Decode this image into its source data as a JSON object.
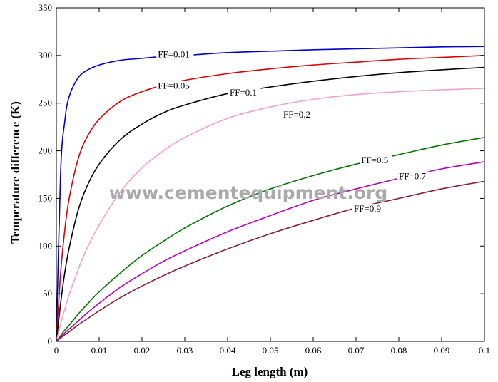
{
  "chart_data": {
    "type": "line",
    "title": "",
    "xlabel": "Leg length (m)",
    "ylabel": "Temperature difference (K)",
    "xlim": [
      0,
      0.1
    ],
    "ylim": [
      0,
      350
    ],
    "xticks": [
      0,
      0.01,
      0.02,
      0.03,
      0.04,
      0.05,
      0.06,
      0.07,
      0.08,
      0.09,
      0.1
    ],
    "yticks": [
      0,
      50,
      100,
      150,
      200,
      250,
      300,
      350
    ],
    "grid": false,
    "legend": "none",
    "x": [
      0,
      0.001,
      0.002,
      0.003,
      0.005,
      0.007,
      0.01,
      0.015,
      0.02,
      0.025,
      0.03,
      0.04,
      0.05,
      0.06,
      0.07,
      0.08,
      0.09,
      0.1
    ],
    "series": [
      {
        "name": "FF=0.01",
        "color": "#0000cc",
        "values": [
          0,
          178,
          232,
          257,
          276,
          284,
          290,
          295,
          297,
          299,
          300,
          303,
          304.5,
          306,
          307,
          308,
          309,
          309.5
        ]
      },
      {
        "name": "FF=0.05",
        "color": "#dd0000",
        "values": [
          0,
          72,
          118,
          150,
          190,
          213,
          233,
          252,
          262,
          269,
          274,
          281,
          286,
          290,
          293,
          296,
          298,
          300
        ]
      },
      {
        "name": "FF=0.1",
        "color": "#000000",
        "values": [
          0,
          40,
          73,
          98,
          136,
          161,
          186,
          212,
          228,
          240,
          248,
          260,
          267,
          273,
          278,
          282,
          285,
          287.5
        ]
      },
      {
        "name": "FF=0.2",
        "color": "#f4a0c8",
        "values": [
          0,
          18,
          34,
          49,
          74,
          96,
          122,
          157,
          182,
          200,
          214,
          234,
          246,
          254,
          259,
          262,
          264,
          265.5
        ]
      },
      {
        "name": "FF=0.5",
        "color": "#007700",
        "values": [
          0,
          6,
          12,
          17,
          28,
          38,
          52,
          72,
          90,
          105,
          119,
          142,
          160,
          174,
          186,
          196,
          206,
          214
        ]
      },
      {
        "name": "FF=0.7",
        "color": "#bb00bb",
        "values": [
          0,
          4.5,
          9,
          13,
          21,
          29,
          40,
          57,
          71,
          84,
          95,
          115,
          132,
          148,
          160,
          171,
          181,
          188.5
        ]
      },
      {
        "name": "FF=0.9",
        "color": "#882233",
        "values": [
          0,
          3.5,
          7,
          10,
          17,
          23,
          32,
          46,
          58,
          69,
          79,
          97,
          113,
          127,
          140,
          150,
          160,
          168
        ]
      }
    ],
    "annotations": [
      {
        "text": "FF=0.01",
        "x": 0.0237,
        "y": 298
      },
      {
        "text": "FF=0.05",
        "x": 0.0237,
        "y": 265
      },
      {
        "text": "FF=0.1",
        "x": 0.0405,
        "y": 258
      },
      {
        "text": "FF=0.2",
        "x": 0.053,
        "y": 235
      },
      {
        "text": "FF=0.5",
        "x": 0.0712,
        "y": 187
      },
      {
        "text": "FF=0.7",
        "x": 0.08,
        "y": 170
      },
      {
        "text": "FF=0.9",
        "x": 0.0695,
        "y": 136
      }
    ]
  },
  "watermark": "www.cementequipment.org"
}
